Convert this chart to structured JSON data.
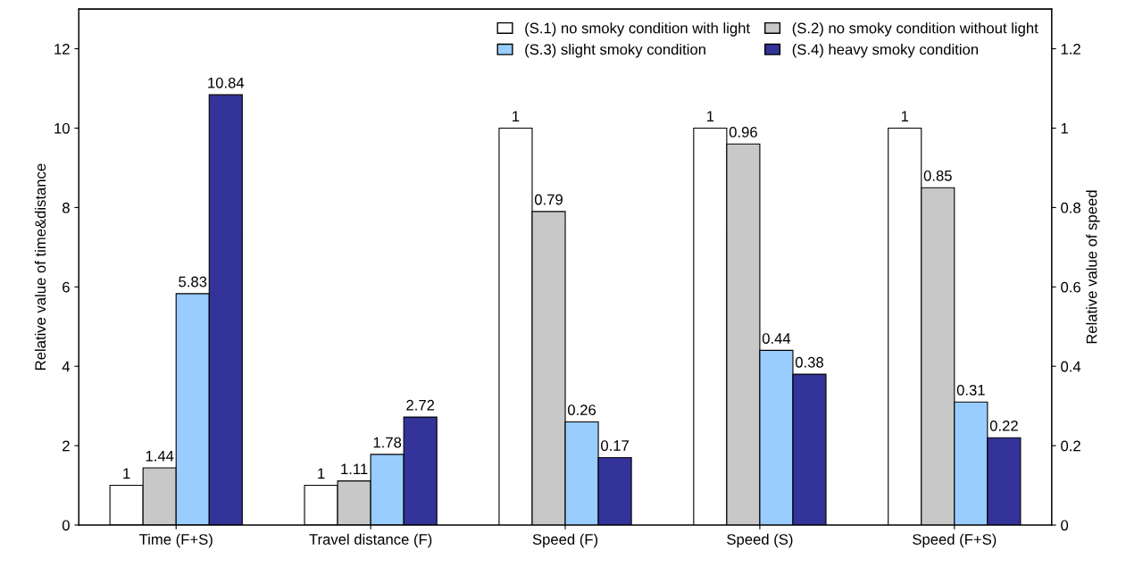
{
  "chart_data": {
    "type": "bar",
    "ylabel": "Relative value of time&distance",
    "y2label": "Relative value of speed",
    "categories": [
      "Time (F+S)",
      "Travel distance (F)",
      "Speed (F)",
      "Speed (S)",
      "Speed (F+S)"
    ],
    "series": [
      {
        "name": "(S.1) no smoky condition with light",
        "color": "#ffffff",
        "axis": "y",
        "values": [
          1,
          1,
          null,
          null,
          null
        ]
      },
      {
        "name": "(S.2) no smoky condition without light",
        "color": "#c8c8c8",
        "axis": "y",
        "values": [
          1.44,
          1.11,
          null,
          null,
          null
        ]
      },
      {
        "name": "(S.3) slight smoky condition",
        "color": "#99ccff",
        "axis": "y",
        "values": [
          5.83,
          1.78,
          null,
          null,
          null
        ]
      },
      {
        "name": "(S.4) heavy smoky condition",
        "color": "#333399",
        "axis": "y",
        "values": [
          10.84,
          2.72,
          null,
          null,
          null
        ]
      },
      {
        "color": "#ffffff",
        "axis": "y2",
        "values": [
          null,
          null,
          1,
          1,
          1
        ]
      },
      {
        "color": "#c8c8c8",
        "axis": "y2",
        "values": [
          null,
          null,
          0.79,
          0.96,
          0.85
        ]
      },
      {
        "color": "#99ccff",
        "axis": "y2",
        "values": [
          null,
          null,
          0.26,
          0.44,
          0.31
        ]
      },
      {
        "color": "#333399",
        "axis": "y2",
        "values": [
          null,
          null,
          0.17,
          0.38,
          0.22
        ]
      }
    ],
    "ylim": [
      0,
      13
    ],
    "yticks": [
      0,
      2,
      4,
      6,
      8,
      10,
      12
    ],
    "y2lim": [
      0,
      1.3
    ],
    "y2ticks": [
      0,
      0.2,
      0.4,
      0.6,
      0.8,
      1,
      1.2
    ],
    "data_labels": true,
    "legend": "top right",
    "grid": false
  }
}
